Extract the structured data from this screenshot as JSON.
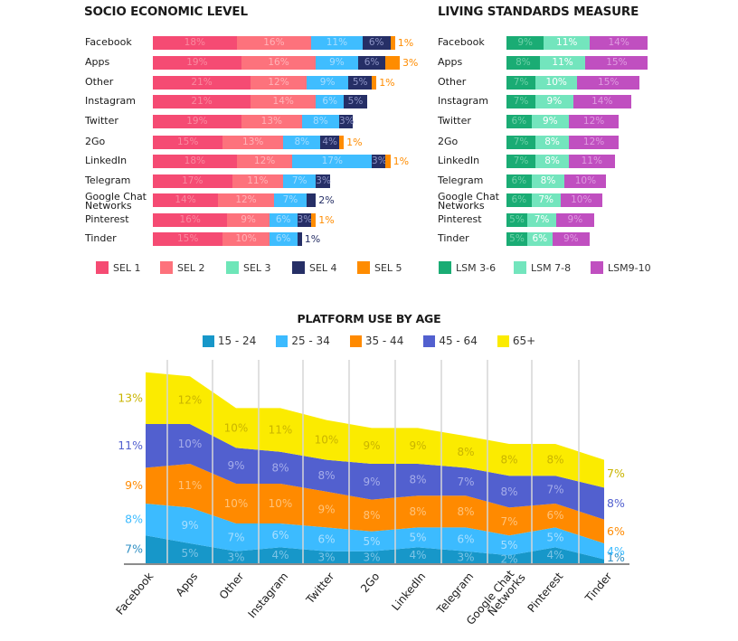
{
  "sel_chart": {
    "title": "SOCIO ECONOMIC LEVEL",
    "type": "bar",
    "colors": [
      "#f54b73",
      "#fd727c",
      "#3fbdff",
      "#262f66",
      "#ff8c00"
    ],
    "label_colors": [
      "#f9899f",
      "#ffb3b8",
      "#a6dcff",
      "#8f95c7",
      "#ff8c00"
    ],
    "legend": [
      "SEL 1",
      "SEL 2",
      "SEL 3",
      "SEL 4",
      "SEL 5"
    ],
    "legend_colors": [
      "#f54b73",
      "#fd727c",
      "#6ee6b8",
      "#262f66",
      "#ff8c00"
    ],
    "rows": [
      {
        "label": "Facebook",
        "values": [
          18,
          16,
          11,
          6,
          1
        ],
        "labels": [
          "18%",
          "16%",
          "11%",
          "6%",
          "1%"
        ]
      },
      {
        "label": "Apps",
        "values": [
          19,
          16,
          9,
          6,
          3
        ],
        "labels": [
          "19%",
          "16%",
          "9%",
          "6%",
          "3%"
        ]
      },
      {
        "label": "Other",
        "values": [
          21,
          12,
          9,
          5,
          1
        ],
        "labels": [
          "21%",
          "12%",
          "9%",
          "5%",
          "1%"
        ]
      },
      {
        "label": "Instagram",
        "values": [
          21,
          14,
          6,
          5,
          0
        ],
        "labels": [
          "21%",
          "14%",
          "6%",
          "5%",
          ""
        ]
      },
      {
        "label": "Twitter",
        "values": [
          19,
          13,
          8,
          3,
          0
        ],
        "labels": [
          "19%",
          "13%",
          "8%",
          "3%",
          ""
        ]
      },
      {
        "label": "2Go",
        "values": [
          15,
          13,
          8,
          4,
          1
        ],
        "labels": [
          "15%",
          "13%",
          "8%",
          "4%",
          "1%"
        ]
      },
      {
        "label": "LinkedIn",
        "values": [
          18,
          12,
          17,
          3,
          1
        ],
        "labels": [
          "18%",
          "12%",
          "17%",
          "3%",
          "1%"
        ]
      },
      {
        "label": "Telegram",
        "values": [
          17,
          11,
          7,
          3,
          0
        ],
        "labels": [
          "17%",
          "11%",
          "7%",
          "3%",
          ""
        ]
      },
      {
        "label": "Google Chat Networks",
        "values": [
          14,
          12,
          7,
          2,
          0
        ],
        "labels": [
          "14%",
          "12%",
          "7%",
          "2%",
          ""
        ]
      },
      {
        "label": "Pinterest",
        "values": [
          16,
          9,
          6,
          3,
          1
        ],
        "labels": [
          "16%",
          "9%",
          "6%",
          "3%",
          "1%"
        ]
      },
      {
        "label": "Tinder",
        "values": [
          15,
          10,
          6,
          1,
          0
        ],
        "labels": [
          "15%",
          "10%",
          "6%",
          "1%",
          ""
        ]
      }
    ]
  },
  "lsm_chart": {
    "title": "LIVING STANDARDS MEASURE",
    "type": "bar",
    "colors": [
      "#1aac74",
      "#73e5bd",
      "#c04fc0"
    ],
    "label_colors": [
      "#6fd0a8",
      "#ffffff",
      "#df9ce0"
    ],
    "legend": [
      "LSM 3-6",
      "LSM 7-8",
      "LSM9-10"
    ],
    "rows": [
      {
        "label": "Facebook",
        "values": [
          9,
          11,
          14
        ],
        "labels": [
          "9%",
          "11%",
          "14%"
        ]
      },
      {
        "label": "Apps",
        "values": [
          8,
          11,
          15
        ],
        "labels": [
          "8%",
          "11%",
          "15%"
        ]
      },
      {
        "label": "Other",
        "values": [
          7,
          10,
          15
        ],
        "labels": [
          "7%",
          "10%",
          "15%"
        ]
      },
      {
        "label": "Instagram",
        "values": [
          7,
          9,
          14
        ],
        "labels": [
          "7%",
          "9%",
          "14%"
        ]
      },
      {
        "label": "Twitter",
        "values": [
          6,
          9,
          12
        ],
        "labels": [
          "6%",
          "9%",
          "12%"
        ]
      },
      {
        "label": "2Go",
        "values": [
          7,
          8,
          12
        ],
        "labels": [
          "7%",
          "8%",
          "12%"
        ]
      },
      {
        "label": "LinkedIn",
        "values": [
          7,
          8,
          11
        ],
        "labels": [
          "7%",
          "8%",
          "11%"
        ]
      },
      {
        "label": "Telegram",
        "values": [
          6,
          8,
          10
        ],
        "labels": [
          "6%",
          "8%",
          "10%"
        ]
      },
      {
        "label": "Google Chat Networks",
        "values": [
          6,
          7,
          10
        ],
        "labels": [
          "6%",
          "7%",
          "10%"
        ]
      },
      {
        "label": "Pinterest",
        "values": [
          5,
          7,
          9
        ],
        "labels": [
          "5%",
          "7%",
          "9%"
        ]
      },
      {
        "label": "Tinder",
        "values": [
          5,
          6,
          9
        ],
        "labels": [
          "5%",
          "6%",
          "9%"
        ]
      }
    ]
  },
  "chart_data": {
    "type": "area",
    "title": "PLATFORM USE BY AGE",
    "categories": [
      "Facebook",
      "Apps",
      "Other",
      "Instagram",
      "Twitter",
      "2Go",
      "LinkedIn",
      "Telegram",
      "Google Chat Networks",
      "Pinterest",
      "Tinder"
    ],
    "series": [
      {
        "name": "15 - 24",
        "color": "#1797c9",
        "label_color": "#7cc4e6",
        "values": [
          7,
          5,
          3,
          4,
          3,
          3,
          4,
          3,
          2,
          4,
          1
        ]
      },
      {
        "name": "25 - 34",
        "color": "#3cbbff",
        "label_color": "#a9dfff",
        "values": [
          8,
          9,
          7,
          6,
          6,
          5,
          5,
          6,
          5,
          5,
          4
        ]
      },
      {
        "name": "35 - 44",
        "color": "#ff8a00",
        "label_color": "#ffc37a",
        "values": [
          9,
          11,
          10,
          10,
          9,
          8,
          8,
          8,
          7,
          6,
          6
        ]
      },
      {
        "name": "45 - 64",
        "color": "#5260cf",
        "label_color": "#a5acea",
        "values": [
          11,
          10,
          9,
          8,
          8,
          9,
          8,
          7,
          8,
          7,
          8
        ]
      },
      {
        "name": "65+",
        "color": "#fbeb00",
        "label_color": "#c9b400",
        "values": [
          13,
          12,
          10,
          11,
          10,
          9,
          9,
          8,
          8,
          8,
          7
        ]
      }
    ],
    "edge_label_colors": [
      "#2f8fc4",
      "#3cbbff",
      "#ff8a00",
      "#5260cf",
      "#c9b400"
    ],
    "stacked": true,
    "grid": true,
    "legend_position": "top"
  }
}
